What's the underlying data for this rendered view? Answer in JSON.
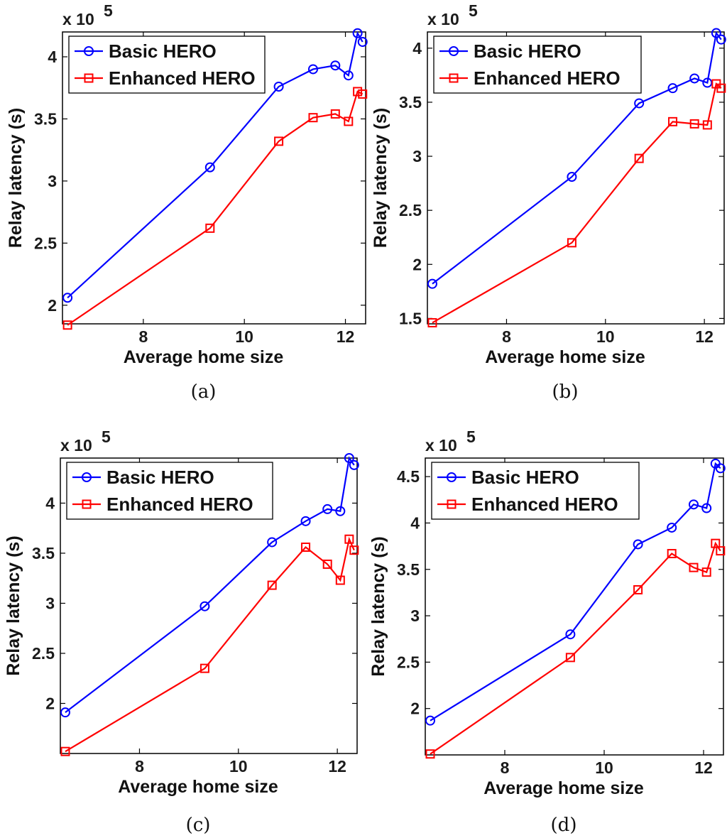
{
  "chart_data": [
    {
      "type": "line",
      "panel": "(a)",
      "caption": "(a)",
      "xlabel": "Average home size",
      "ylabel": "Relay latency (s)",
      "multiplier": "x 10",
      "multiplier_exp": "5",
      "xlim": [
        6.4,
        12.4
      ],
      "ylim": [
        1.85,
        4.2
      ],
      "xticks": [
        8,
        10,
        12
      ],
      "xtick_labels": [
        "8",
        "10",
        "12"
      ],
      "yticks": [
        2,
        2.5,
        3,
        3.5,
        4
      ],
      "ytick_labels": [
        "2",
        "2.5",
        "3",
        "3.5",
        "4"
      ],
      "x": [
        6.5,
        9.32,
        10.68,
        11.36,
        11.8,
        12.06,
        12.24,
        12.34
      ],
      "series": [
        {
          "name": "Basic HERO",
          "color": "#0000ff",
          "marker": "circle",
          "values": [
            2.06,
            3.11,
            3.76,
            3.9,
            3.93,
            3.85,
            4.19,
            4.12
          ]
        },
        {
          "name": "Enhanced HERO",
          "color": "#ff0000",
          "marker": "square",
          "values": [
            1.84,
            2.62,
            3.32,
            3.51,
            3.54,
            3.48,
            3.72,
            3.7
          ]
        }
      ]
    },
    {
      "type": "line",
      "panel": "(b)",
      "caption": "(b)",
      "xlabel": "Average home size",
      "ylabel": "Relay latency (s)",
      "multiplier": "x 10",
      "multiplier_exp": "5",
      "xlim": [
        6.4,
        12.4
      ],
      "ylim": [
        1.45,
        4.15
      ],
      "xticks": [
        8,
        10,
        12
      ],
      "xtick_labels": [
        "8",
        "10",
        "12"
      ],
      "yticks": [
        1.5,
        2,
        2.5,
        3,
        3.5,
        4
      ],
      "ytick_labels": [
        "1.5",
        "2",
        "2.5",
        "3",
        "3.5",
        "4"
      ],
      "x": [
        6.5,
        9.32,
        10.68,
        11.36,
        11.8,
        12.06,
        12.24,
        12.34
      ],
      "series": [
        {
          "name": "Basic HERO",
          "color": "#0000ff",
          "marker": "circle",
          "values": [
            1.82,
            2.81,
            3.49,
            3.63,
            3.72,
            3.68,
            4.14,
            4.08
          ]
        },
        {
          "name": "Enhanced HERO",
          "color": "#ff0000",
          "marker": "square",
          "values": [
            1.46,
            2.2,
            2.98,
            3.32,
            3.3,
            3.29,
            3.67,
            3.63
          ]
        }
      ]
    },
    {
      "type": "line",
      "panel": "(c)",
      "caption": "(c)",
      "xlabel": "Average home size",
      "ylabel": "Relay latency (s)",
      "multiplier": "x 10",
      "multiplier_exp": "5",
      "xlim": [
        6.4,
        12.4
      ],
      "ylim": [
        1.5,
        4.45
      ],
      "xticks": [
        8,
        10,
        12
      ],
      "xtick_labels": [
        "8",
        "10",
        "12"
      ],
      "yticks": [
        2,
        2.5,
        3,
        3.5,
        4
      ],
      "ytick_labels": [
        "2",
        "2.5",
        "3",
        "3.5",
        "4"
      ],
      "x": [
        6.5,
        9.32,
        10.68,
        11.36,
        11.8,
        12.06,
        12.24,
        12.34
      ],
      "series": [
        {
          "name": "Basic HERO",
          "color": "#0000ff",
          "marker": "circle",
          "values": [
            1.91,
            2.97,
            3.61,
            3.82,
            3.94,
            3.92,
            4.45,
            4.38
          ]
        },
        {
          "name": "Enhanced HERO",
          "color": "#ff0000",
          "marker": "square",
          "values": [
            1.52,
            2.35,
            3.18,
            3.56,
            3.39,
            3.23,
            3.64,
            3.53
          ]
        }
      ]
    },
    {
      "type": "line",
      "panel": "(d)",
      "caption": "(d)",
      "xlabel": "Average home size",
      "ylabel": "Relay latency (s)",
      "multiplier": "x 10",
      "multiplier_exp": "5",
      "xlim": [
        6.4,
        12.4
      ],
      "ylim": [
        1.5,
        4.7
      ],
      "xticks": [
        8,
        10,
        12
      ],
      "xtick_labels": [
        "8",
        "10",
        "12"
      ],
      "yticks": [
        2,
        2.5,
        3,
        3.5,
        4,
        4.5
      ],
      "ytick_labels": [
        "2",
        "2.5",
        "3",
        "3.5",
        "4",
        "4.5"
      ],
      "x": [
        6.5,
        9.32,
        10.68,
        11.36,
        11.8,
        12.06,
        12.24,
        12.34
      ],
      "series": [
        {
          "name": "Basic HERO",
          "color": "#0000ff",
          "marker": "circle",
          "values": [
            1.87,
            2.8,
            3.77,
            3.95,
            4.2,
            4.16,
            4.64,
            4.59
          ]
        },
        {
          "name": "Enhanced HERO",
          "color": "#ff0000",
          "marker": "square",
          "values": [
            1.51,
            2.55,
            3.28,
            3.67,
            3.52,
            3.47,
            3.78,
            3.7
          ]
        }
      ]
    }
  ]
}
